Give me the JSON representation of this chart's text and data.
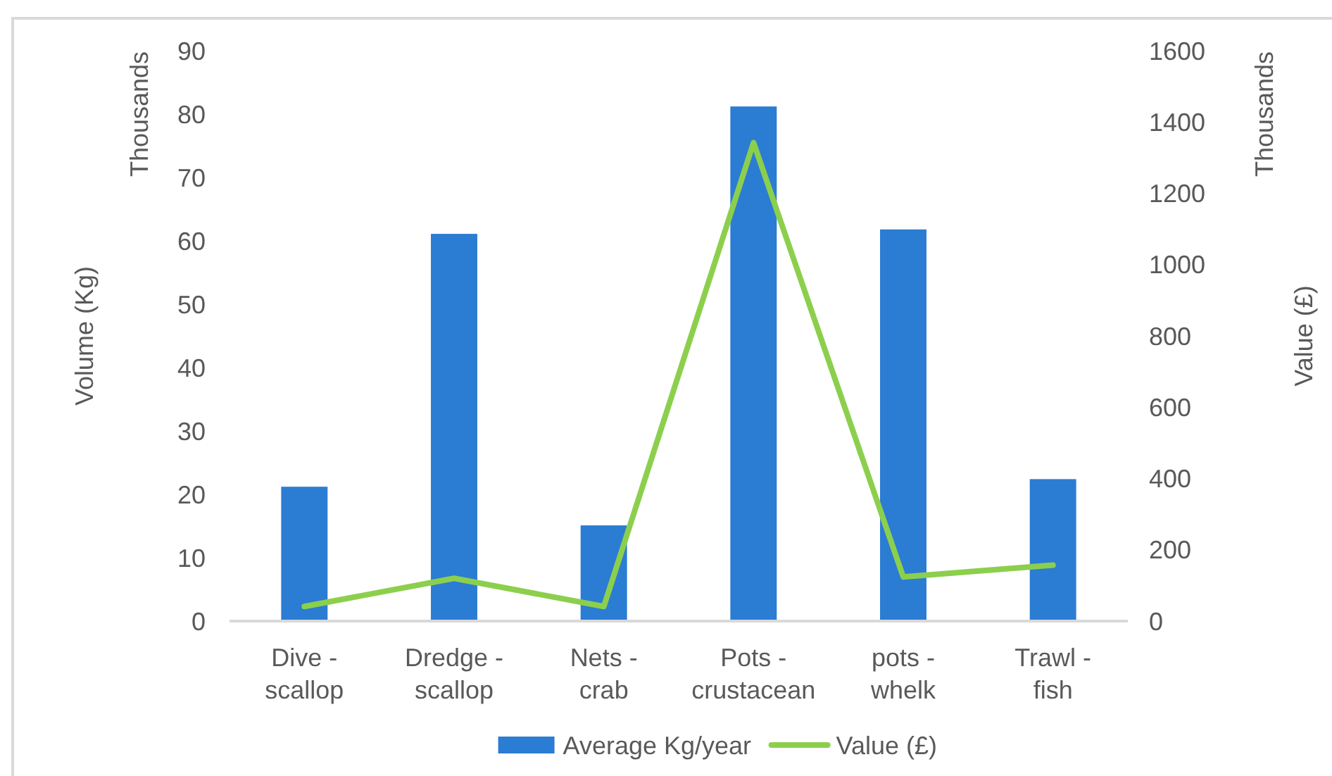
{
  "chart_data": {
    "type": "bar",
    "categories": [
      "Dive - scallop",
      "Dredge - scallop",
      "Nets - crab",
      "Pots - crustacean",
      "pots - whelk",
      "Trawl - fish"
    ],
    "series": [
      {
        "name": "Average Kg/year",
        "color": "#2b7cd3",
        "values": [
          21.2,
          61.1,
          15.1,
          81.2,
          61.8,
          22.4
        ]
      },
      {
        "name": "Value (£)",
        "type": "line",
        "axis": "y2",
        "color": "#8ccf4d",
        "values": [
          41,
          120,
          41,
          1342,
          124,
          157
        ]
      }
    ],
    "ylabel": "Volume (Kg)",
    "y2label": "Value (£)",
    "ylim": [
      0,
      90
    ],
    "yticks": [
      0,
      10,
      20,
      30,
      40,
      50,
      60,
      70,
      80,
      90
    ],
    "y2lim": [
      0,
      1600
    ],
    "y2ticks": [
      0,
      200,
      400,
      600,
      800,
      1000,
      1200,
      1400,
      1600
    ],
    "annotations": [
      "Thousands",
      "Thousands"
    ],
    "grid": false,
    "legend": "bottom",
    "marker": "none"
  }
}
